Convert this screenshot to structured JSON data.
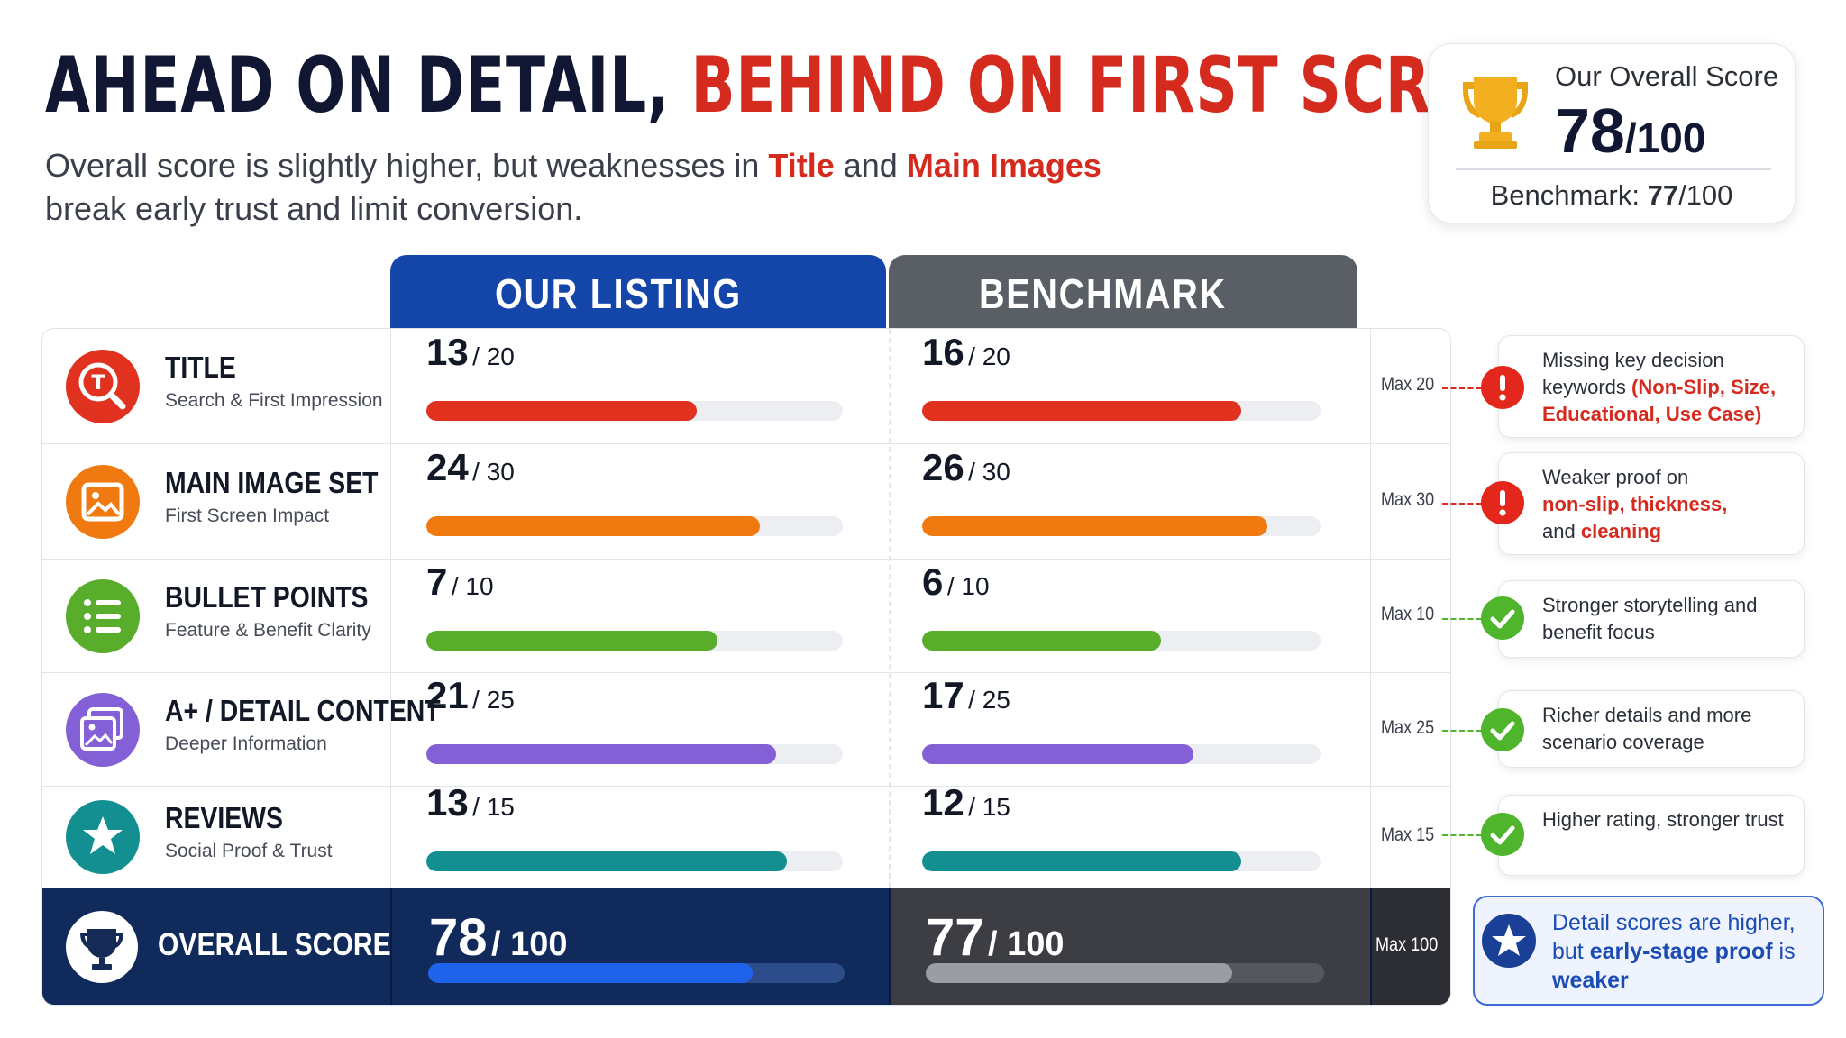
{
  "header": {
    "title_part1": "AHEAD ON DETAIL,",
    "title_part2": "BEHIND ON FIRST SCREEN",
    "subtitle_1": "Overall score is slightly higher, but weaknesses in",
    "subtitle_hl1": "Title",
    "subtitle_2": "and",
    "subtitle_hl2": "Main Images",
    "subtitle_3": "break early trust and limit conversion."
  },
  "score_card": {
    "label": "Our Overall Score",
    "score": "78",
    "score_denominator": "/100",
    "benchmark_label": "Benchmark:",
    "benchmark_score": "77",
    "benchmark_denominator": "/100"
  },
  "columns": {
    "ours": "OUR LISTING",
    "benchmark": "BENCHMARK"
  },
  "chart_data": {
    "type": "bar",
    "categories": [
      "TITLE",
      "MAIN IMAGE SET",
      "BULLET POINTS",
      "A+ / DETAIL CONTENT",
      "REVIEWS"
    ],
    "max_values": [
      20,
      30,
      10,
      25,
      15
    ],
    "series": [
      {
        "name": "OUR LISTING",
        "values": [
          13,
          24,
          7,
          21,
          13
        ]
      },
      {
        "name": "BENCHMARK",
        "values": [
          16,
          26,
          6,
          17,
          12
        ]
      }
    ],
    "overall": {
      "ours": 78,
      "benchmark": 77,
      "max": 100
    }
  },
  "rows": [
    {
      "title": "TITLE",
      "subtitle": "Search & First Impression",
      "icon": "title-search-icon",
      "color": "#e0321f",
      "ours": "13",
      "ours_of": "/ 20",
      "bench": "16",
      "bench_of": "/ 20",
      "max_label": "Max 20"
    },
    {
      "title": "MAIN IMAGE SET",
      "subtitle": "First Screen Impact",
      "icon": "image-icon",
      "color": "#f07a10",
      "ours": "24",
      "ours_of": "/ 30",
      "bench": "26",
      "bench_of": "/ 30",
      "max_label": "Max 30"
    },
    {
      "title": "BULLET POINTS",
      "subtitle": "Feature & Benefit Clarity",
      "icon": "list-icon",
      "color": "#58ad2b",
      "ours": "7",
      "ours_of": "/ 10",
      "bench": "6",
      "bench_of": "/ 10",
      "max_label": "Max 10"
    },
    {
      "title": "A+ / DETAIL CONTENT",
      "subtitle": "Deeper Information",
      "icon": "gallery-icon",
      "color": "#8460d6",
      "ours": "21",
      "ours_of": "/ 25",
      "bench": "17",
      "bench_of": "/ 25",
      "max_label": "Max 25"
    },
    {
      "title": "REVIEWS",
      "subtitle": "Social Proof & Trust",
      "icon": "star-icon",
      "color": "#138f91",
      "ours": "13",
      "ours_of": "/ 15",
      "bench": "12",
      "bench_of": "/ 15",
      "max_label": "Max 15"
    }
  ],
  "overall_row": {
    "label": "OVERALL SCORE",
    "ours": "78",
    "ours_of": "/ 100",
    "bench": "77",
    "bench_of": "/ 100",
    "max_label": "Max 100",
    "ours_color": "#1f63ea",
    "bench_color": "#9b9da3"
  },
  "notes": [
    {
      "status": "warning",
      "icon": "exclamation-icon",
      "p1": "Missing key decision keywords",
      "p2": "(Non-Slip, Size, Educational, Use Case)"
    },
    {
      "status": "warning",
      "icon": "exclamation-icon",
      "p1": "Weaker proof on",
      "p2": "non-slip, thickness,",
      "p3": "and",
      "p4": "cleaning"
    },
    {
      "status": "positive",
      "icon": "check-icon",
      "p1": "Stronger storytelling and benefit focus"
    },
    {
      "status": "positive",
      "icon": "check-icon",
      "p1": "Richer details and more scenario coverage"
    },
    {
      "status": "positive",
      "icon": "check-icon",
      "p1": "Higher rating, stronger trust"
    }
  ],
  "takeaway": {
    "icon": "star-badge-icon",
    "p1": "Detail scores are higher, but",
    "p2": "early-stage proof",
    "p3": "is",
    "p4": "weaker"
  },
  "colors": {
    "navy": "#111733",
    "accent_red": "#d42b1e",
    "our_header": "#1346a8",
    "bench_header": "#5a5f66",
    "warning": "#e3271c",
    "positive": "#4fb52c"
  }
}
